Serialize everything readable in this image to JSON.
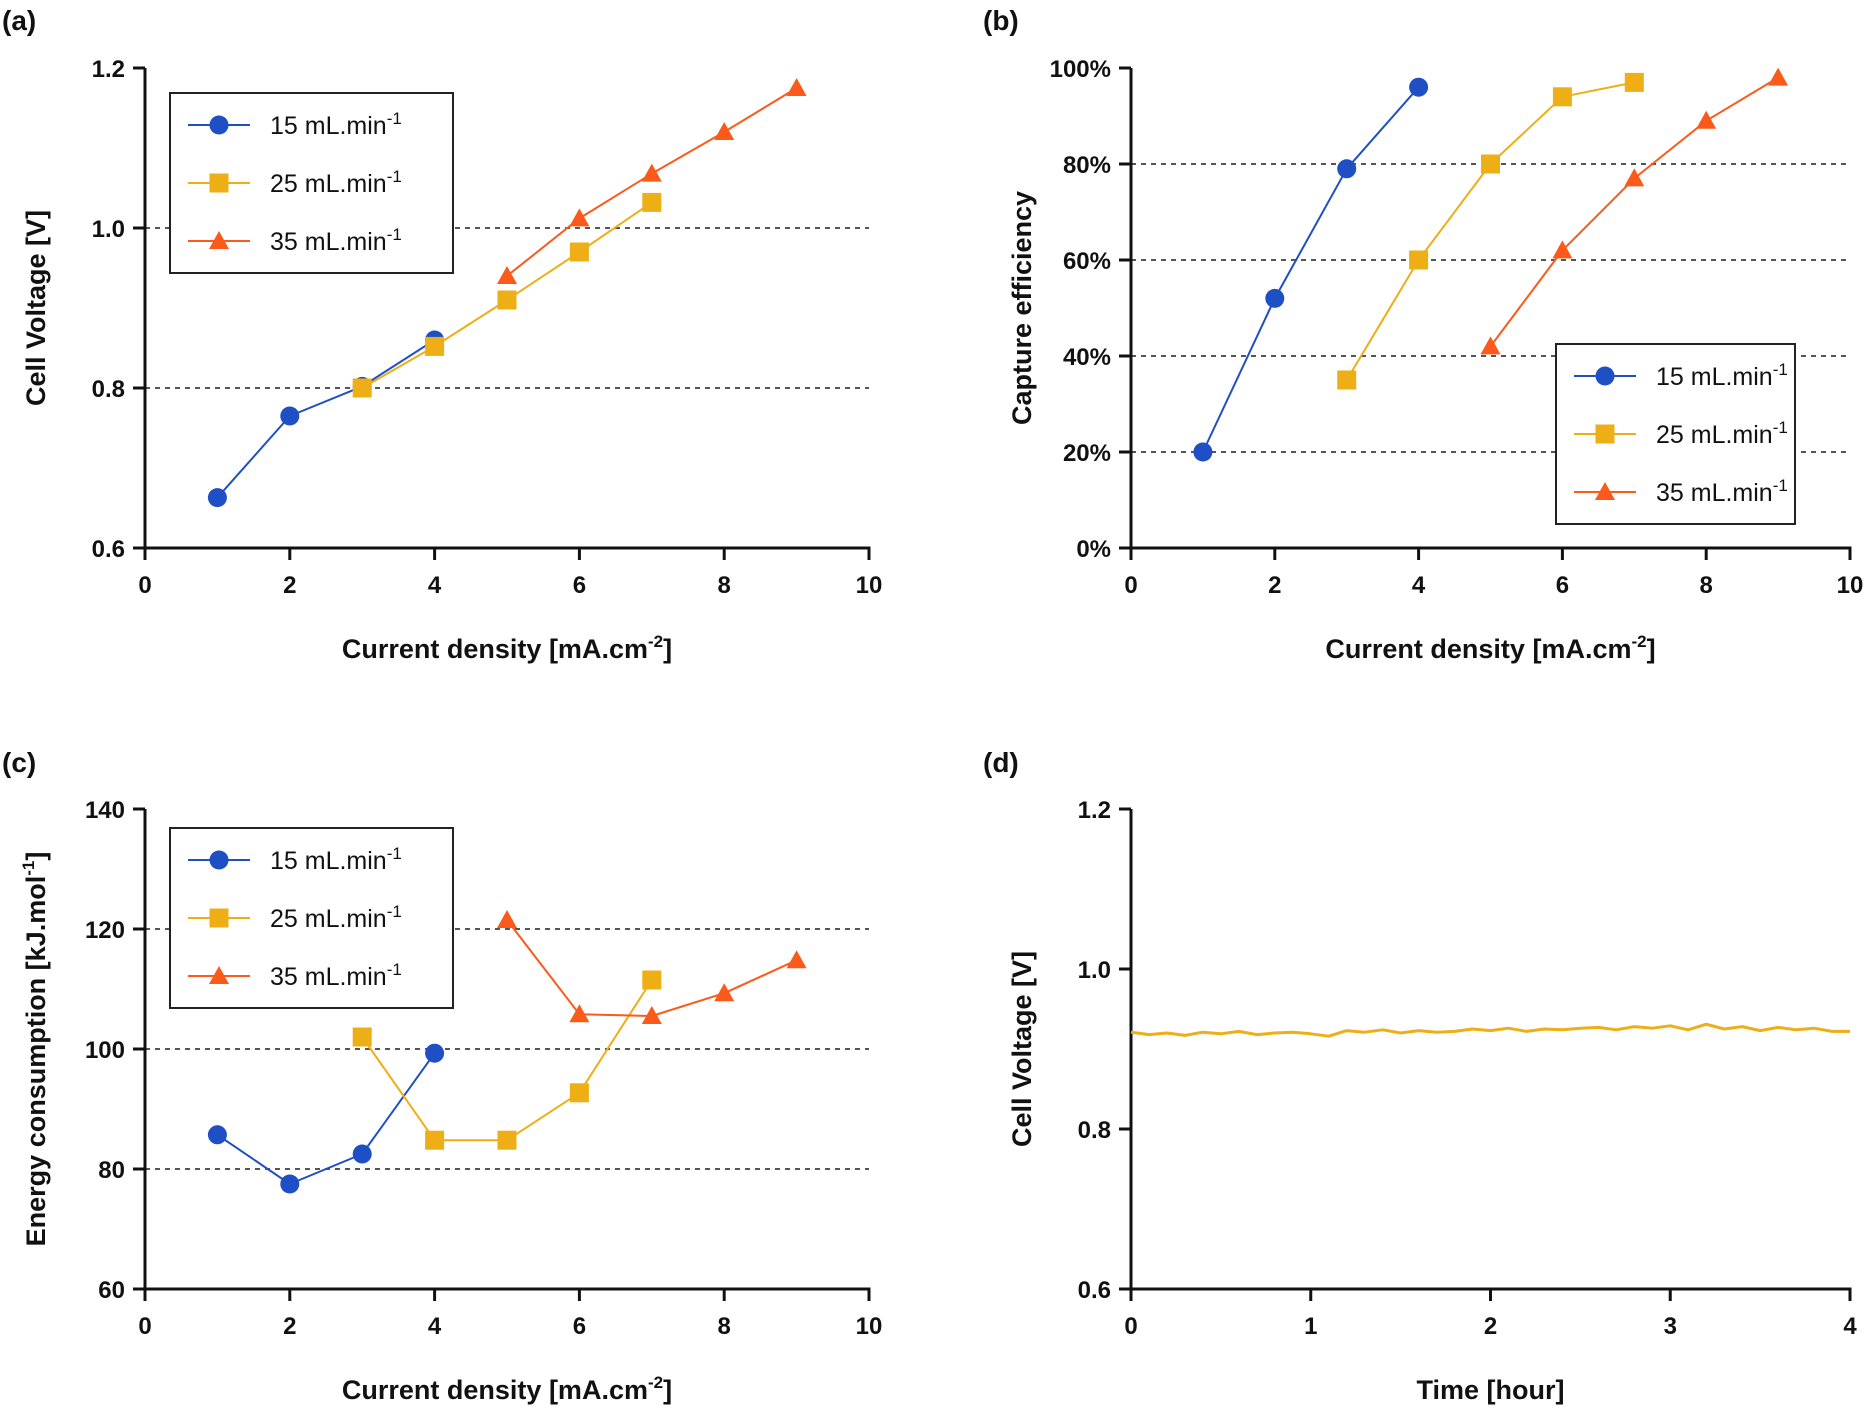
{
  "colors": {
    "blue": "#1f4fc4",
    "yellow": "#eeae16",
    "orange": "#fb5a1a",
    "axis": "#111111",
    "grid": "#555555"
  },
  "chart_data": [
    {
      "panel": "(a)",
      "type": "line",
      "xlabel": "Current density [mA.cm",
      "xlabel_sup": "-2",
      "xlabel_end": "]",
      "ylabel": "Cell Voltage [V]",
      "ylabel_sup": "",
      "ylabel_end": "",
      "xlim": [
        0,
        10
      ],
      "ylim": [
        0.6,
        1.2
      ],
      "xticks": [
        "0",
        "2",
        "4",
        "6",
        "8",
        "10"
      ],
      "yticks": [
        "0.6",
        "0.8",
        "1.0",
        "1.2"
      ],
      "grid_y": [
        0.8,
        1.0
      ],
      "legend": "top-left",
      "series": [
        {
          "name": "15 mL.min",
          "name_sup": "-1",
          "color": "blue",
          "marker": "circle",
          "x": [
            1,
            2,
            3,
            4
          ],
          "y": [
            0.663,
            0.765,
            0.802,
            0.86
          ]
        },
        {
          "name": "25 mL.min",
          "name_sup": "-1",
          "color": "yellow",
          "marker": "square",
          "x": [
            3,
            4,
            5,
            6,
            7
          ],
          "y": [
            0.8,
            0.852,
            0.91,
            0.97,
            1.032
          ]
        },
        {
          "name": "35 mL.min",
          "name_sup": "-1",
          "color": "orange",
          "marker": "triangle",
          "x": [
            5,
            6,
            7,
            8,
            9
          ],
          "y": [
            0.94,
            1.012,
            1.068,
            1.12,
            1.175
          ]
        }
      ]
    },
    {
      "panel": "(b)",
      "type": "line",
      "xlabel": "Current density [mA.cm",
      "xlabel_sup": "-2",
      "xlabel_end": "]",
      "ylabel": "Capture efficiency",
      "ylabel_sup": "",
      "ylabel_end": "",
      "xlim": [
        0,
        10
      ],
      "ylim": [
        0,
        100
      ],
      "xticks": [
        "0",
        "2",
        "4",
        "6",
        "8",
        "10"
      ],
      "yticks": [
        "0%",
        "20%",
        "40%",
        "60%",
        "80%",
        "100%"
      ],
      "grid_y": [
        20,
        40,
        60,
        80
      ],
      "legend": "bottom-right",
      "series": [
        {
          "name": "15 mL.min",
          "name_sup": "-1",
          "color": "blue",
          "marker": "circle",
          "x": [
            1,
            2,
            3,
            4
          ],
          "y": [
            20,
            52,
            79,
            96
          ]
        },
        {
          "name": "25 mL.min",
          "name_sup": "-1",
          "color": "yellow",
          "marker": "square",
          "x": [
            3,
            4,
            5,
            6,
            7
          ],
          "y": [
            35,
            60,
            80,
            94,
            97
          ]
        },
        {
          "name": "35 mL.min",
          "name_sup": "-1",
          "color": "orange",
          "marker": "triangle",
          "x": [
            5,
            6,
            7,
            8,
            9
          ],
          "y": [
            42,
            62,
            77,
            89,
            98
          ]
        }
      ]
    },
    {
      "panel": "(c)",
      "type": "line",
      "xlabel": "Current density [mA.cm",
      "xlabel_sup": "-2",
      "xlabel_end": "]",
      "ylabel": "Energy consumption [kJ.mol",
      "ylabel_sup": "-1",
      "ylabel_end": "]",
      "xlim": [
        0,
        10
      ],
      "ylim": [
        60,
        140
      ],
      "xticks": [
        "0",
        "2",
        "4",
        "6",
        "8",
        "10"
      ],
      "yticks": [
        "60",
        "80",
        "100",
        "120",
        "140"
      ],
      "grid_y": [
        80,
        100,
        120
      ],
      "legend": "top-left",
      "series": [
        {
          "name": "15 mL.min",
          "name_sup": "-1",
          "color": "blue",
          "marker": "circle",
          "x": [
            1,
            2,
            3,
            4
          ],
          "y": [
            85.7,
            77.5,
            82.5,
            99.3
          ]
        },
        {
          "name": "25 mL.min",
          "name_sup": "-1",
          "color": "yellow",
          "marker": "square",
          "x": [
            3,
            4,
            5,
            6,
            7
          ],
          "y": [
            102,
            84.8,
            84.8,
            92.7,
            111.5
          ]
        },
        {
          "name": "35 mL.min",
          "name_sup": "-1",
          "color": "orange",
          "marker": "triangle",
          "x": [
            5,
            6,
            7,
            8,
            9
          ],
          "y": [
            121.5,
            105.8,
            105.5,
            109.3,
            114.8
          ]
        }
      ]
    },
    {
      "panel": "(d)",
      "type": "line",
      "xlabel": "Time [hour]",
      "xlabel_sup": "",
      "xlabel_end": "",
      "ylabel": "Cell Voltage [V]",
      "ylabel_sup": "",
      "ylabel_end": "",
      "xlim": [
        0,
        4
      ],
      "ylim": [
        0.6,
        1.2
      ],
      "xticks": [
        "0",
        "1",
        "2",
        "3",
        "4"
      ],
      "yticks": [
        "0.6",
        "0.8",
        "1.0",
        "1.2"
      ],
      "grid_y": [],
      "legend": "none",
      "series": [
        {
          "name": "",
          "color": "yellow",
          "marker": "none",
          "x": [
            0,
            0.1,
            0.2,
            0.3,
            0.4,
            0.5,
            0.6,
            0.7,
            0.8,
            0.9,
            1.0,
            1.1,
            1.2,
            1.3,
            1.4,
            1.5,
            1.6,
            1.7,
            1.8,
            1.9,
            2.0,
            2.1,
            2.2,
            2.3,
            2.4,
            2.5,
            2.6,
            2.7,
            2.8,
            2.9,
            3.0,
            3.1,
            3.2,
            3.3,
            3.4,
            3.5,
            3.6,
            3.7,
            3.8,
            3.9,
            4.0
          ],
          "y": [
            0.921,
            0.918,
            0.92,
            0.917,
            0.921,
            0.919,
            0.922,
            0.918,
            0.92,
            0.921,
            0.919,
            0.916,
            0.923,
            0.921,
            0.924,
            0.92,
            0.923,
            0.921,
            0.922,
            0.925,
            0.923,
            0.926,
            0.922,
            0.925,
            0.924,
            0.926,
            0.927,
            0.924,
            0.928,
            0.926,
            0.929,
            0.924,
            0.931,
            0.925,
            0.928,
            0.923,
            0.927,
            0.924,
            0.926,
            0.922,
            0.922
          ]
        }
      ]
    }
  ]
}
